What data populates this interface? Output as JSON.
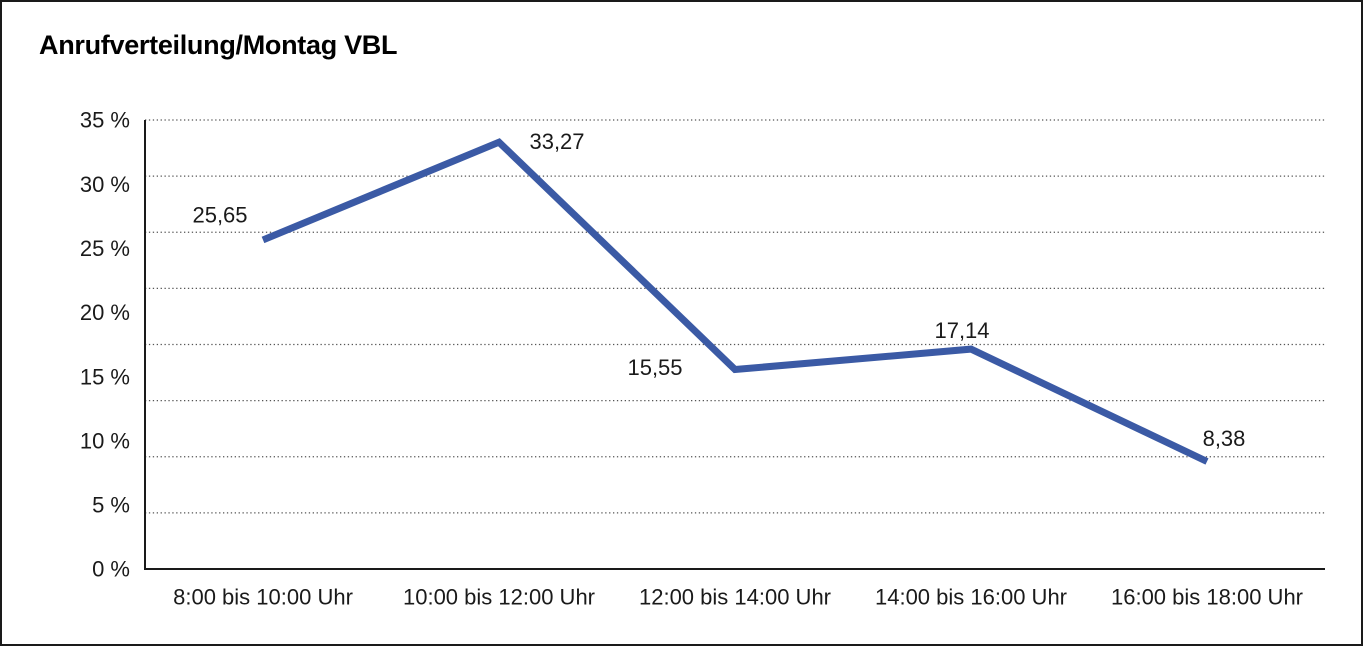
{
  "chart_data": {
    "type": "line",
    "title": "Anrufverteilung/Montag VBL",
    "x_categories": [
      "8:00 bis 10:00 Uhr",
      "10:00 bis 12:00 Uhr",
      "12:00 bis 14:00 Uhr",
      "14:00 bis 16:00 Uhr",
      "16:00 bis 18:00 Uhr"
    ],
    "series": [
      {
        "values": [
          25.65,
          33.27,
          15.55,
          17.14,
          8.38
        ],
        "point_labels": [
          "25,65",
          "33,27",
          "15,55",
          "17,14",
          "8,38"
        ],
        "color": "#3B5AA5"
      }
    ],
    "y_ticks": [
      {
        "value": 35,
        "label": "35 %"
      },
      {
        "value": 30,
        "label": "30 %"
      },
      {
        "value": 25,
        "label": "25 %"
      },
      {
        "value": 20,
        "label": "20 %"
      },
      {
        "value": 15,
        "label": "15 %"
      },
      {
        "value": 10,
        "label": "10 %"
      },
      {
        "value": 5,
        "label": "5 %"
      },
      {
        "value": 0,
        "label": "0 %"
      }
    ],
    "ylim": [
      0,
      35
    ],
    "xlabel": "",
    "ylabel": "",
    "grid": {
      "horizontal": true,
      "style": "dotted",
      "divisions": 8
    },
    "legend": "none",
    "axis_color": "#1a1a1a",
    "grid_color": "#555555"
  }
}
